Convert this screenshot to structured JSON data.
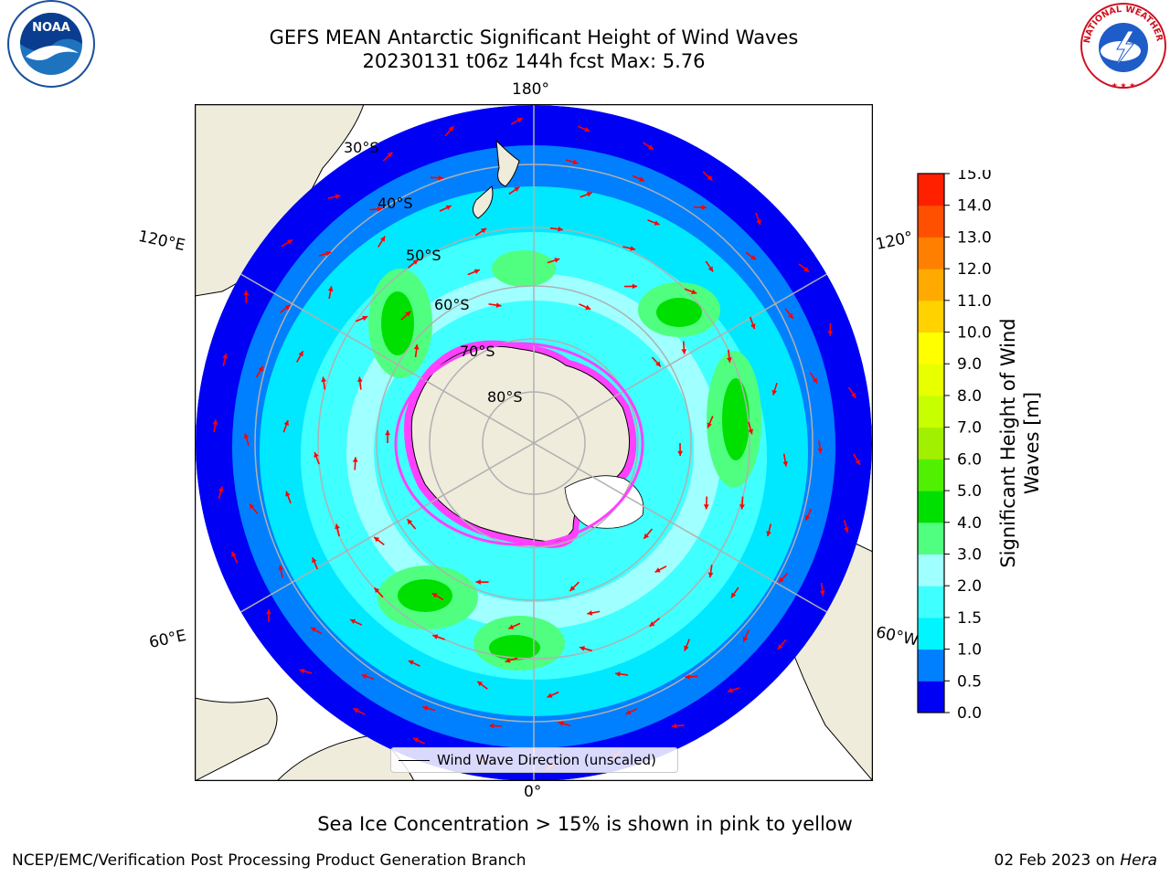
{
  "header": {
    "title_line1": "GEFS MEAN Antarctic Significant Height of Wind Waves",
    "title_line2": "20230131 t06z 144h fcst   Max: 5.76"
  },
  "logos": {
    "left": "NOAA",
    "right": "NATIONAL WEATHER SERVICE"
  },
  "map": {
    "projection": "south-polar-stereographic",
    "longitude_labels": {
      "top": "180°",
      "bottom": "0°",
      "left_upper": "120°E",
      "left_lower": "60°E",
      "right_upper": "120°",
      "right_lower": "60°W"
    },
    "latitude_labels": [
      "30°S",
      "40°S",
      "50°S",
      "60°S",
      "70°S",
      "80°S"
    ],
    "legend_label": "Wind Wave Direction (unscaled)",
    "colors": {
      "land": "#efecdc",
      "ocean_deep": "#0000f5",
      "graticule": "#b0b0b0",
      "arrows": "#ff0000",
      "sea_ice": "#ff40ff"
    }
  },
  "colorbar": {
    "label": "Significant Height of Wind Waves [m]",
    "ticks": [
      "0.0",
      "0.5",
      "1.0",
      "1.5",
      "2.0",
      "3.0",
      "4.0",
      "5.0",
      "6.0",
      "7.0",
      "8.0",
      "9.0",
      "10.0",
      "11.0",
      "12.0",
      "13.0",
      "14.0",
      "15.0"
    ],
    "colors": [
      "#0000f5",
      "#0080ff",
      "#00f5ff",
      "#40ffff",
      "#a0ffff",
      "#50ff80",
      "#00e000",
      "#50f000",
      "#a0f000",
      "#c8ff00",
      "#e8ff00",
      "#ffff00",
      "#ffd200",
      "#ffaa00",
      "#ff8000",
      "#ff5000",
      "#ff2000",
      "#ff0000"
    ]
  },
  "caption": "Sea Ice Concentration > 15% is shown in pink to yellow",
  "footer": {
    "left": "NCEP/EMC/Verification Post Processing Product Generation Branch",
    "right_prefix": "02 Feb 2023 on ",
    "right_machine": "Hera"
  }
}
